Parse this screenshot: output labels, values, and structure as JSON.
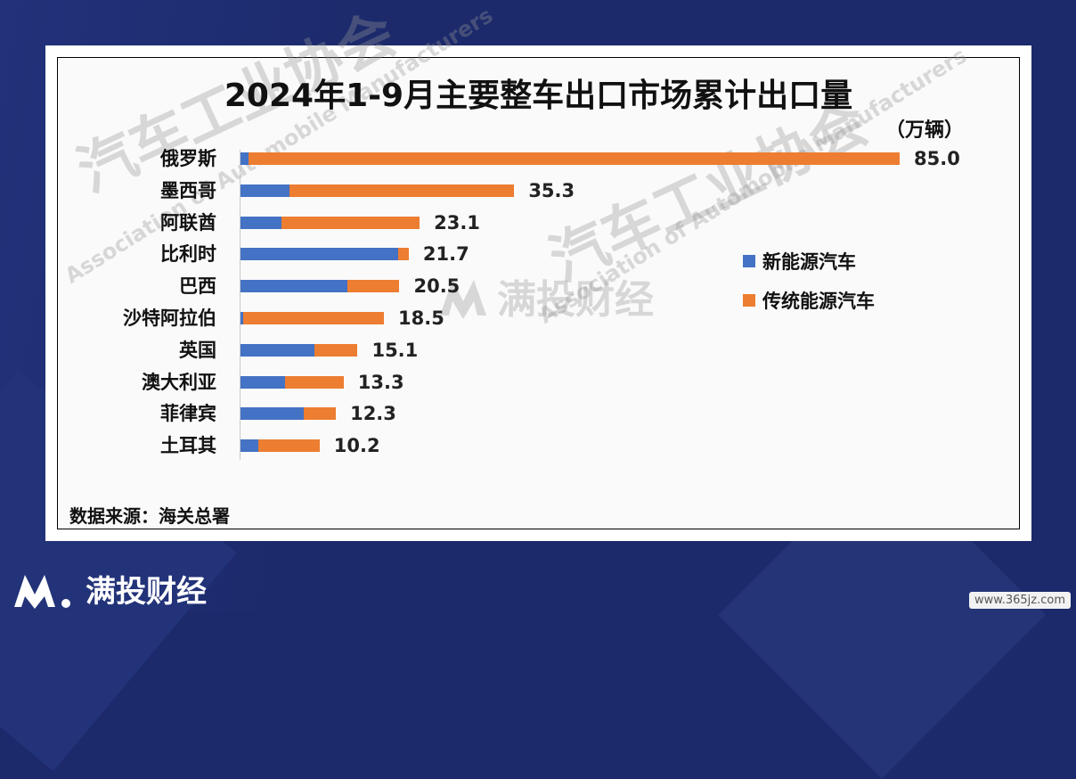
{
  "chart_data": {
    "type": "bar",
    "stacked": true,
    "orientation": "horizontal",
    "title": "2024年1-9月主要整车出口市场累计出口量",
    "unit": "（万辆）",
    "categories": [
      "俄罗斯",
      "墨西哥",
      "阿联酋",
      "比利时",
      "巴西",
      "沙特阿拉伯",
      "英国",
      "澳大利亚",
      "菲律宾",
      "土耳其"
    ],
    "totals": [
      "85.0",
      "35.3",
      "23.1",
      "21.7",
      "20.5",
      "18.5",
      "15.1",
      "13.3",
      "12.3",
      "10.2"
    ],
    "series": [
      {
        "name": "新能源汽车",
        "color": "#4472c4",
        "values": [
          1.0,
          6.3,
          5.3,
          20.3,
          13.8,
          0.3,
          9.5,
          5.7,
          8.2,
          2.3
        ]
      },
      {
        "name": "传统能源汽车",
        "color": "#ed7d31",
        "values": [
          84.0,
          29.0,
          17.8,
          1.4,
          6.7,
          18.2,
          5.6,
          7.6,
          4.1,
          7.9
        ]
      }
    ],
    "xlim": [
      0,
      85
    ],
    "legend": "right",
    "grid": false
  },
  "source": "数据来源：海关总署",
  "watermark": {
    "cn": "汽车工业协会",
    "en": "Association of Automobile Manufacturers",
    "brand": "满投财经"
  },
  "footer": {
    "brand": "满投财经",
    "site": "www.365jz.com"
  }
}
